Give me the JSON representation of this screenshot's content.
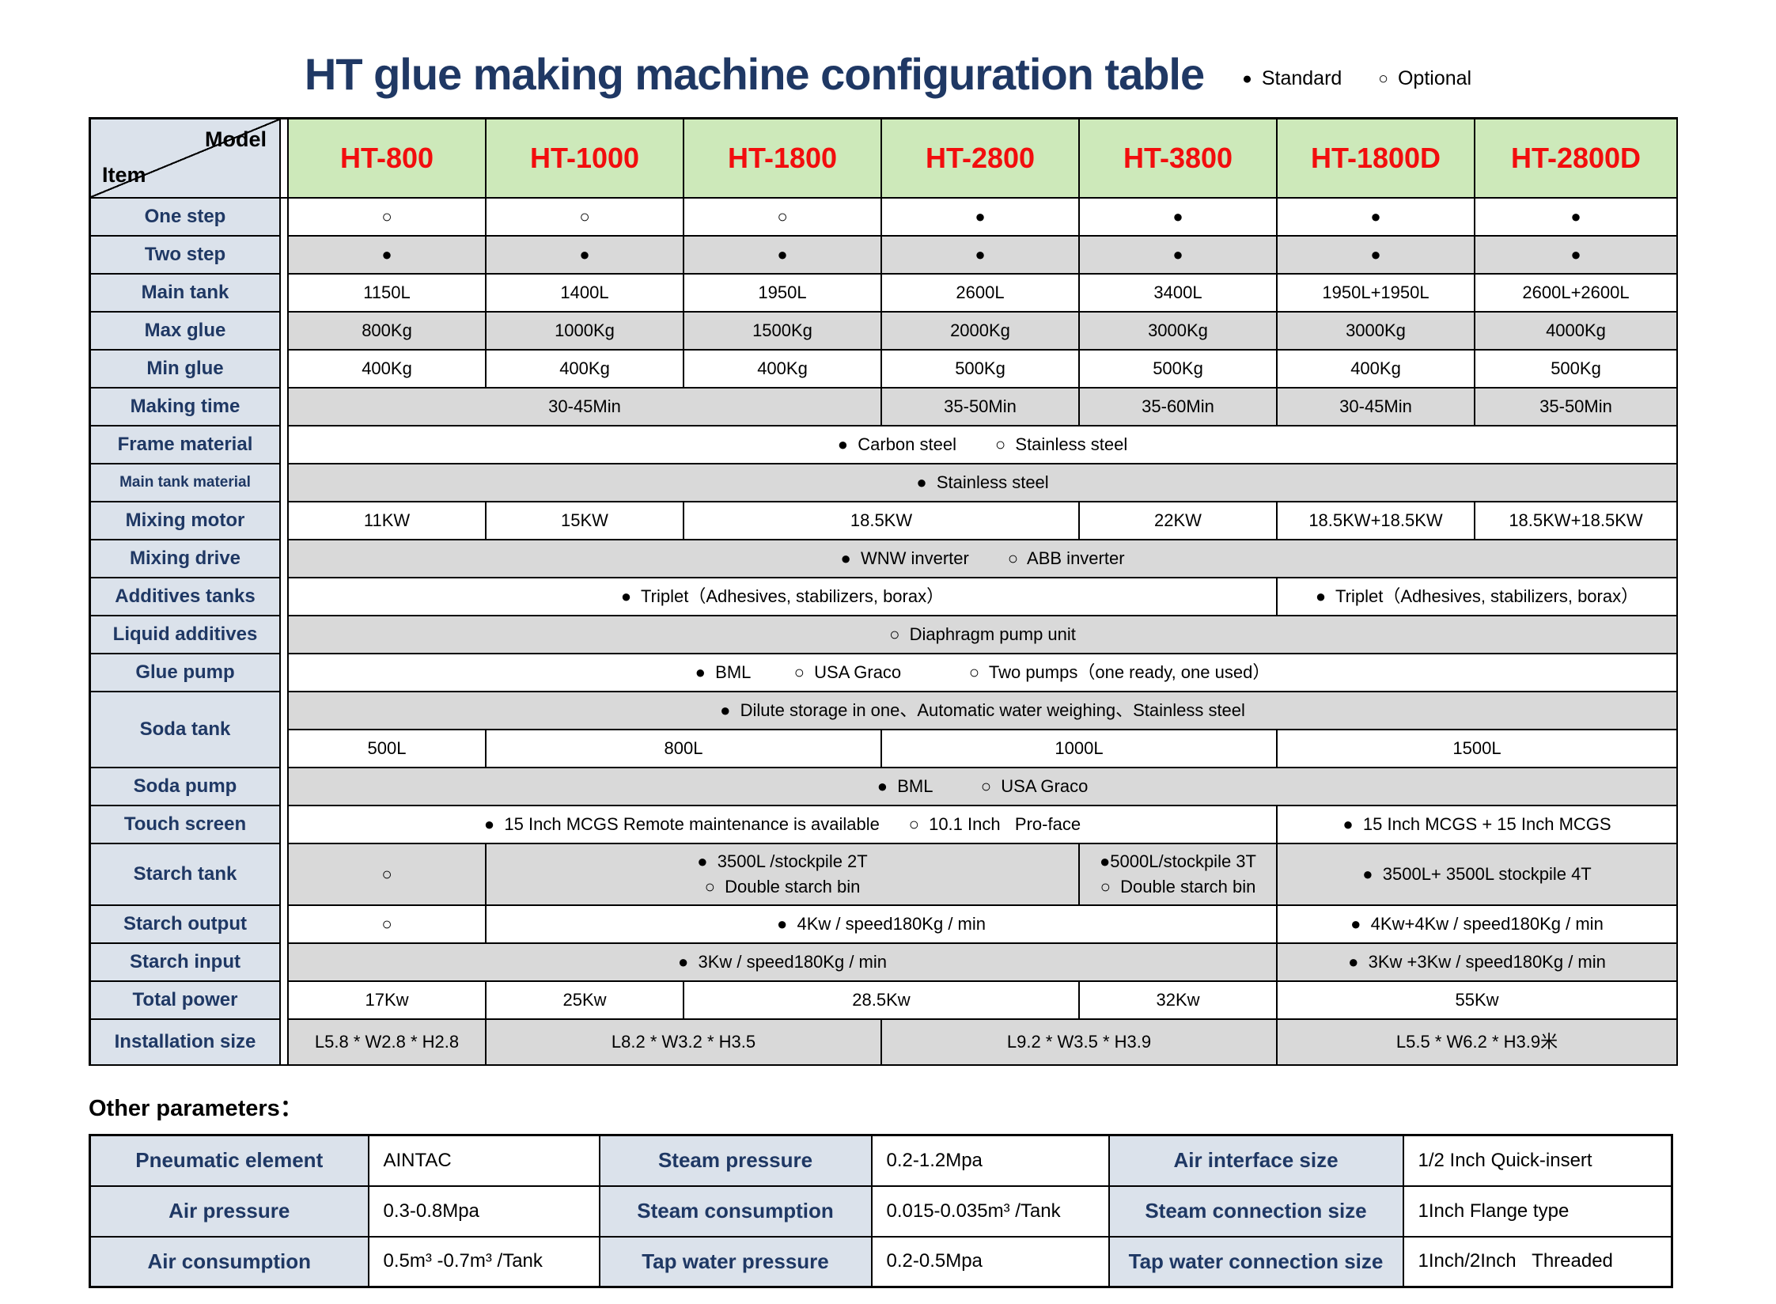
{
  "page_title": "HT glue making machine configuration table",
  "legend": {
    "items": [
      {
        "symbol": "●",
        "label": "Standard"
      },
      {
        "symbol": "○",
        "label": "Optional"
      }
    ]
  },
  "main_table": {
    "corner": {
      "model_label": "Model",
      "item_label": "Item"
    },
    "models": [
      "HT-800",
      "HT-1000",
      "HT-1800",
      "HT-2800",
      "HT-3800",
      "HT-1800D",
      "HT-2800D"
    ],
    "rows": [
      {
        "label": "One step",
        "shade": "white",
        "cells": [
          {
            "t": "○"
          },
          {
            "t": "○"
          },
          {
            "t": "○"
          },
          {
            "t": "●"
          },
          {
            "t": "●"
          },
          {
            "t": "●"
          },
          {
            "t": "●"
          }
        ]
      },
      {
        "label": "Two step",
        "shade": "gray",
        "cells": [
          {
            "t": "●"
          },
          {
            "t": "●"
          },
          {
            "t": "●"
          },
          {
            "t": "●"
          },
          {
            "t": "●"
          },
          {
            "t": "●"
          },
          {
            "t": "●"
          }
        ]
      },
      {
        "label": "Main tank",
        "shade": "white",
        "cells": [
          {
            "t": "1150L"
          },
          {
            "t": "1400L"
          },
          {
            "t": "1950L"
          },
          {
            "t": "2600L"
          },
          {
            "t": "3400L"
          },
          {
            "t": "1950L+1950L"
          },
          {
            "t": "2600L+2600L"
          }
        ]
      },
      {
        "label": "Max glue",
        "shade": "gray",
        "cells": [
          {
            "t": "800Kg"
          },
          {
            "t": "1000Kg"
          },
          {
            "t": "1500Kg"
          },
          {
            "t": "2000Kg"
          },
          {
            "t": "3000Kg"
          },
          {
            "t": "3000Kg"
          },
          {
            "t": "4000Kg"
          }
        ]
      },
      {
        "label": "Min glue",
        "shade": "white",
        "cells": [
          {
            "t": "400Kg"
          },
          {
            "t": "400Kg"
          },
          {
            "t": "400Kg"
          },
          {
            "t": "500Kg"
          },
          {
            "t": "500Kg"
          },
          {
            "t": "400Kg"
          },
          {
            "t": "500Kg"
          }
        ]
      },
      {
        "label": "Making time",
        "shade": "gray",
        "cells": [
          {
            "t": "30-45Min",
            "span": 3
          },
          {
            "t": "35-50Min"
          },
          {
            "t": "35-60Min"
          },
          {
            "t": "30-45Min"
          },
          {
            "t": "35-50Min"
          }
        ]
      },
      {
        "label": "Frame material",
        "shade": "white",
        "cells": [
          {
            "t": "●  Carbon steel        ○  Stainless steel",
            "span": 7
          }
        ]
      },
      {
        "label": "Main tank material",
        "small": true,
        "shade": "gray",
        "cells": [
          {
            "t": "●  Stainless steel",
            "span": 7
          }
        ]
      },
      {
        "label": "Mixing motor",
        "shade": "white",
        "cells": [
          {
            "t": "11KW"
          },
          {
            "t": "15KW"
          },
          {
            "t": "18.5KW",
            "span": 2
          },
          {
            "t": "22KW"
          },
          {
            "t": "18.5KW+18.5KW"
          },
          {
            "t": "18.5KW+18.5KW"
          }
        ]
      },
      {
        "label": "Mixing drive",
        "shade": "gray",
        "cells": [
          {
            "t": "●  WNW inverter        ○  ABB inverter",
            "span": 7
          }
        ]
      },
      {
        "label": "Additives tanks",
        "shade": "white",
        "cells": [
          {
            "t": "●  Triplet（Adhesives, stabilizers, borax）",
            "span": 5
          },
          {
            "t": "●  Triplet（Adhesives, stabilizers, borax）",
            "span": 2
          }
        ]
      },
      {
        "label": "Liquid additives",
        "shade": "gray",
        "cells": [
          {
            "t": "○  Diaphragm pump unit",
            "span": 7
          }
        ]
      },
      {
        "label": "Glue pump",
        "shade": "white",
        "cells": [
          {
            "t": "●  BML         ○  USA Graco              ○  Two pumps（one ready, one used）",
            "span": 7
          }
        ]
      },
      {
        "label": "Soda tank",
        "label_rowspan": 2,
        "shade": "gray",
        "cells": [
          {
            "t": "●  Dilute storage in one、Automatic water weighing、Stainless steel",
            "span": 7
          }
        ]
      },
      {
        "shade": "white",
        "cells": [
          {
            "t": "500L"
          },
          {
            "t": "800L",
            "span": 2
          },
          {
            "t": "1000L",
            "span": 2
          },
          {
            "t": "1500L",
            "span": 2
          }
        ]
      },
      {
        "label": "Soda pump",
        "shade": "gray",
        "cells": [
          {
            "t": "●  BML          ○  USA Graco",
            "span": 7
          }
        ]
      },
      {
        "label": "Touch screen",
        "shade": "white",
        "cells": [
          {
            "t": "●  15 Inch MCGS Remote maintenance is available      ○  10.1 Inch   Pro-face",
            "span": 5
          },
          {
            "t": "●  15 Inch MCGS + 15 Inch MCGS",
            "span": 2
          }
        ]
      },
      {
        "label": "Starch tank",
        "shade": "gray",
        "tall": true,
        "cells": [
          {
            "t": "○"
          },
          {
            "t": "●  3500L /stockpile 2T\n○  Double starch bin",
            "span": 3
          },
          {
            "t": "●5000L/stockpile 3T\n○  Double starch bin"
          },
          {
            "t": "●  3500L+ 3500L stockpile 4T",
            "span": 2
          }
        ]
      },
      {
        "label": "Starch output",
        "shade": "white",
        "cells": [
          {
            "t": "○"
          },
          {
            "t": "●  4Kw / speed180Kg / min",
            "span": 4
          },
          {
            "t": "●  4Kw+4Kw / speed180Kg / min",
            "span": 2
          }
        ]
      },
      {
        "label": "Starch input",
        "shade": "gray",
        "cells": [
          {
            "t": "●  3Kw / speed180Kg / min",
            "span": 5
          },
          {
            "t": "●  3Kw +3Kw / speed180Kg / min",
            "span": 2
          }
        ]
      },
      {
        "label": "Total power",
        "shade": "white",
        "cells": [
          {
            "t": "17Kw"
          },
          {
            "t": "25Kw"
          },
          {
            "t": "28.5Kw",
            "span": 2
          },
          {
            "t": "32Kw"
          },
          {
            "t": "55Kw",
            "span": 2
          }
        ]
      },
      {
        "label": "Installation size",
        "shade": "gray",
        "cells": [
          {
            "t": "L5.8 * W2.8 * H2.8"
          },
          {
            "t": "L8.2 * W3.2 * H3.5",
            "span": 2
          },
          {
            "t": "L9.2 * W3.5 * H3.9",
            "span": 2
          },
          {
            "t": "L5.5 * W6.2 * H3.9米",
            "span": 2
          }
        ]
      }
    ]
  },
  "other_parameters": {
    "heading": "Other parameters：",
    "rows": [
      [
        {
          "label": "Pneumatic element",
          "value": "AINTAC"
        },
        {
          "label": "Steam pressure",
          "value": "0.2-1.2Mpa"
        },
        {
          "label": "Air interface size",
          "value": "1/2 Inch Quick-insert"
        }
      ],
      [
        {
          "label": "Air pressure",
          "value": "0.3-0.8Mpa"
        },
        {
          "label": "Steam consumption",
          "value": "0.015-0.035m³ /Tank"
        },
        {
          "label": "Steam connection size",
          "value": "1Inch Flange type"
        }
      ],
      [
        {
          "label": "Air consumption",
          "value": "0.5m³ -0.7m³ /Tank"
        },
        {
          "label": "Tap water pressure",
          "value": "0.2-0.5Mpa"
        },
        {
          "label": "Tap water connection size",
          "value": "1Inch/2Inch   Threaded"
        }
      ]
    ]
  },
  "colors": {
    "title_navy": "#1f3864",
    "model_red": "#f20d0d",
    "header_green": "#cde9ba",
    "label_bg": "#dbe2eb",
    "row_gray": "#d9d9d9",
    "border_black": "#000000"
  }
}
